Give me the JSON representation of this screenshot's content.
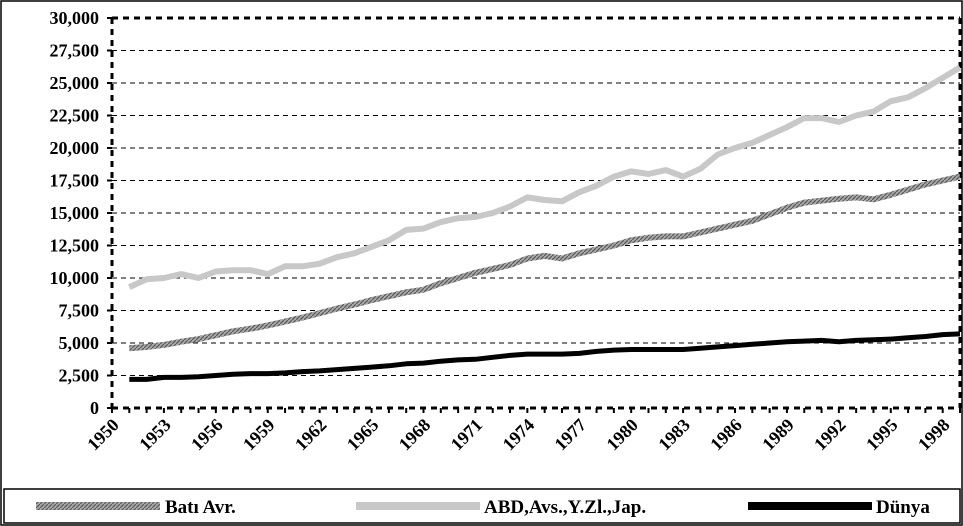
{
  "chart_data": {
    "type": "line",
    "x_tick_labels": [
      "1950",
      "1953",
      "1956",
      "1959",
      "1962",
      "1965",
      "1968",
      "1971",
      "1974",
      "1977",
      "1980",
      "1983",
      "1986",
      "1989",
      "1992",
      "1995",
      "1998"
    ],
    "y_tick_labels": [
      "0",
      "2,500",
      "5,000",
      "7,500",
      "10,000",
      "12,500",
      "15,000",
      "17,500",
      "20,000",
      "22,500",
      "25,000",
      "27,500",
      "30,000"
    ],
    "ylim": [
      0,
      30000
    ],
    "xlim": [
      1950,
      1999
    ],
    "grid": "horizontal dashed",
    "legend_position": "bottom",
    "x": [
      1951,
      1952,
      1953,
      1954,
      1955,
      1956,
      1957,
      1958,
      1959,
      1960,
      1961,
      1962,
      1963,
      1964,
      1965,
      1966,
      1967,
      1968,
      1969,
      1970,
      1971,
      1972,
      1973,
      1974,
      1975,
      1976,
      1977,
      1978,
      1979,
      1980,
      1981,
      1982,
      1983,
      1984,
      1985,
      1986,
      1987,
      1988,
      1989,
      1990,
      1991,
      1992,
      1993,
      1994,
      1995,
      1996,
      1997,
      1998,
      1999
    ],
    "series": [
      {
        "name": "Batı Avr.",
        "color": "#8c8c8c",
        "style": "hatched",
        "values": [
          4600,
          4700,
          4850,
          5100,
          5300,
          5600,
          5900,
          6100,
          6350,
          6650,
          6950,
          7300,
          7650,
          7950,
          8300,
          8600,
          8900,
          9100,
          9600,
          10000,
          10400,
          10700,
          11000,
          11500,
          11700,
          11500,
          11900,
          12200,
          12500,
          12900,
          13100,
          13200,
          13200,
          13500,
          13800,
          14100,
          14400,
          14900,
          15400,
          15800,
          15950,
          16100,
          16200,
          16050,
          16400,
          16800,
          17200,
          17500,
          17800
        ]
      },
      {
        "name": "ABD,Avs.,Y.Zl.,Jap.",
        "color": "#c8c8c8",
        "style": "solid",
        "values": [
          9300,
          9900,
          10000,
          10300,
          10000,
          10500,
          10600,
          10600,
          10300,
          10900,
          10900,
          11100,
          11600,
          11900,
          12400,
          12900,
          13700,
          13800,
          14300,
          14600,
          14700,
          15000,
          15500,
          16200,
          16000,
          15900,
          16600,
          17100,
          17800,
          18200,
          18000,
          18300,
          17800,
          18400,
          19500,
          20000,
          20400,
          21000,
          21600,
          22300,
          22300,
          22000,
          22500,
          22800,
          23600,
          23900,
          24600,
          25400,
          26200
        ]
      },
      {
        "name": "Dünya",
        "color": "#000000",
        "style": "solid",
        "values": [
          2200,
          2200,
          2350,
          2350,
          2400,
          2500,
          2600,
          2650,
          2650,
          2700,
          2800,
          2850,
          2950,
          3050,
          3150,
          3250,
          3400,
          3450,
          3600,
          3700,
          3750,
          3900,
          4050,
          4150,
          4150,
          4150,
          4200,
          4350,
          4450,
          4500,
          4500,
          4500,
          4500,
          4600,
          4700,
          4800,
          4900,
          5000,
          5100,
          5150,
          5200,
          5100,
          5200,
          5250,
          5300,
          5400,
          5500,
          5650,
          5700
        ]
      }
    ]
  }
}
